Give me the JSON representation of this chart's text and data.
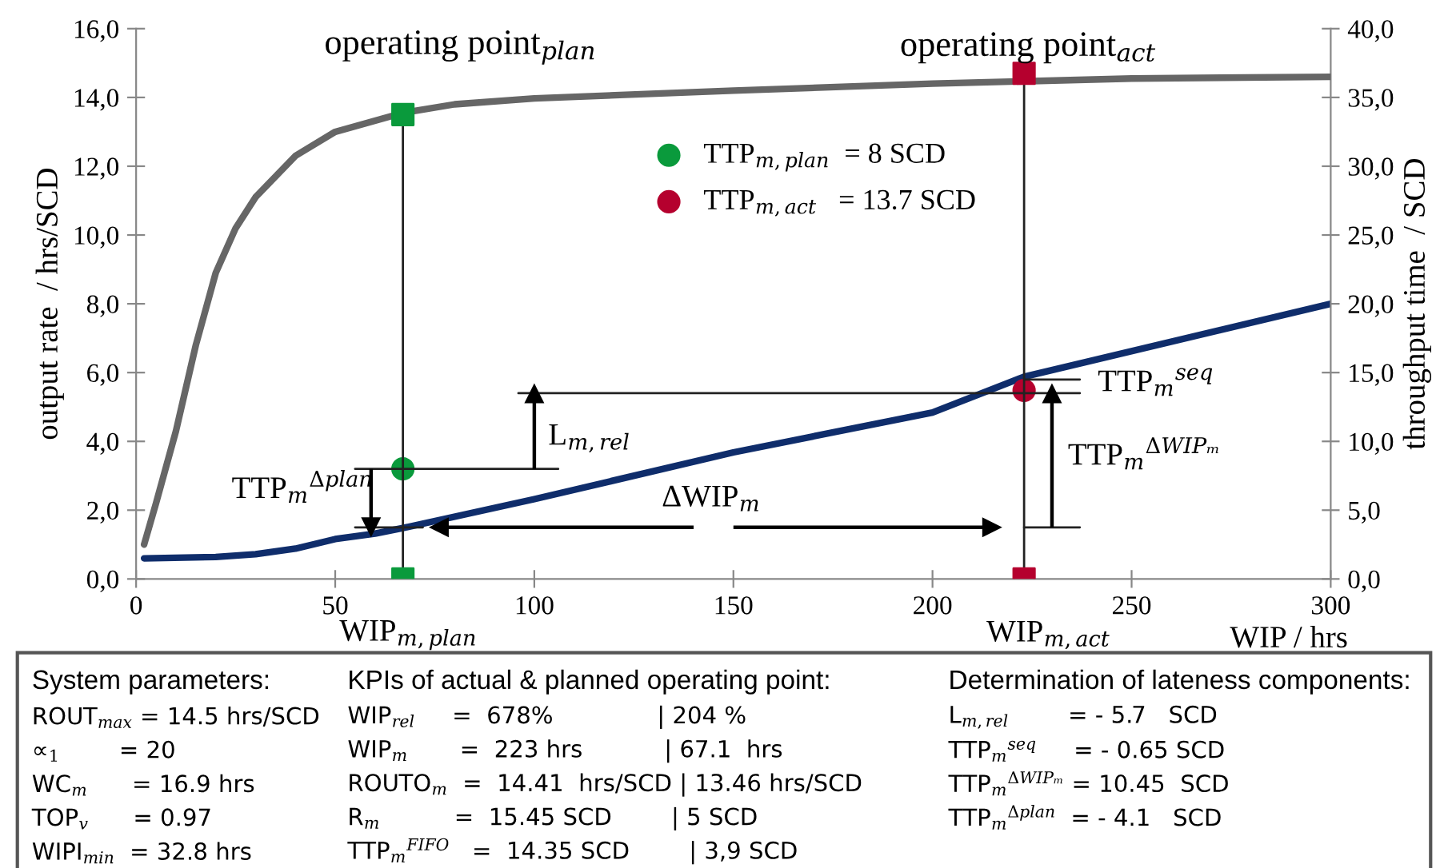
{
  "chart_data": {
    "type": "line",
    "xlabel": "WIP / hrs",
    "ylabel": "output rate  / hrs/SCD",
    "y2label": "throughput time  / SCD",
    "xlim": [
      0,
      300
    ],
    "xticks": [
      0,
      50,
      100,
      150,
      200,
      250,
      300
    ],
    "ylim": [
      0,
      16
    ],
    "yticks": [
      {
        "value": 0,
        "label": "0,0"
      },
      {
        "value": 2,
        "label": "2,0"
      },
      {
        "value": 4,
        "label": "4,0"
      },
      {
        "value": 6,
        "label": "6,0"
      },
      {
        "value": 8,
        "label": "8,0"
      },
      {
        "value": 10,
        "label": "10,0"
      },
      {
        "value": 12,
        "label": "12,0"
      },
      {
        "value": 14,
        "label": "14,0"
      },
      {
        "value": 16,
        "label": "16,0"
      }
    ],
    "y2lim": [
      0,
      40
    ],
    "y2ticks": [
      {
        "value": 0,
        "label": "0,0"
      },
      {
        "value": 5,
        "label": "5,0"
      },
      {
        "value": 10,
        "label": "10,0"
      },
      {
        "value": 15,
        "label": "15,0"
      },
      {
        "value": 20,
        "label": "20,0"
      },
      {
        "value": 25,
        "label": "25,0"
      },
      {
        "value": 30,
        "label": "30,0"
      },
      {
        "value": 35,
        "label": "35,0"
      },
      {
        "value": 40,
        "label": "40,0"
      }
    ],
    "grid": false,
    "legend": "top",
    "series": [
      {
        "color": "#666666",
        "x": [
          2,
          5,
          10,
          15,
          20,
          25,
          30,
          40,
          50,
          67,
          80,
          100,
          150,
          200,
          250,
          300
        ],
        "values": [
          1.0,
          2.2,
          4.3,
          6.8,
          8.9,
          10.2,
          11.1,
          12.3,
          13.0,
          13.55,
          13.8,
          13.97,
          14.2,
          14.4,
          14.55,
          14.6
        ]
      },
      {
        "axis": "y2",
        "color": "#0f2d6b",
        "x": [
          2,
          20,
          30,
          40,
          50,
          60,
          67,
          100,
          150,
          200,
          223,
          300
        ],
        "values": [
          1.5,
          1.6,
          1.8,
          2.2,
          2.9,
          3.3,
          3.7,
          5.8,
          9.2,
          12.1,
          14.7,
          20.0
        ]
      },
      {
        "color": "#222222",
        "x": [
          67,
          67
        ],
        "values": [
          0,
          13.5
        ]
      },
      {
        "color": "#222222",
        "x": [
          223,
          223
        ],
        "values": [
          0,
          14.7
        ]
      },
      {
        "color": "#222222",
        "x": [
          55,
          106
        ],
        "values": [
          3.2,
          3.2
        ]
      },
      {
        "color": "#222222",
        "x": [
          55,
          72
        ],
        "values": [
          1.5,
          1.5
        ]
      },
      {
        "color": "#222222",
        "x": [
          96,
          237
        ],
        "values": [
          5.4,
          5.4
        ]
      },
      {
        "color": "#222222",
        "x": [
          223,
          237
        ],
        "values": [
          5.8,
          5.8
        ]
      },
      {
        "color": "#222222",
        "x": [
          223,
          237
        ],
        "values": [
          1.5,
          1.5
        ]
      },
      {
        "marker": "triangle",
        "color": "#000000",
        "x": [
          59,
          59
        ],
        "values": [
          3.2,
          1.5
        ]
      },
      {
        "marker": "triangle",
        "color": "#000000",
        "x": [
          100,
          100
        ],
        "values": [
          3.2,
          5.4
        ]
      },
      {
        "marker": "triangle",
        "color": "#000000",
        "x": [
          140,
          76
        ],
        "values": [
          1.5,
          1.5
        ]
      },
      {
        "marker": "triangle",
        "color": "#000000",
        "x": [
          150,
          215
        ],
        "values": [
          1.5,
          1.5
        ]
      },
      {
        "marker": "triangle",
        "color": "#000000",
        "x": [
          230,
          230
        ],
        "values": [
          1.5,
          5.4
        ]
      },
      {
        "type": "scatter",
        "marker": "square",
        "color": "#0a9a3c",
        "x": [
          67,
          67
        ],
        "values": [
          13.5,
          0
        ]
      },
      {
        "type": "scatter",
        "marker": "square",
        "color": "#b5002e",
        "x": [
          223,
          223
        ],
        "values": [
          14.7,
          0
        ]
      },
      {
        "type": "scatter",
        "marker": "circle",
        "axis": "y2",
        "name": "TTP$_{m,plan}$  = 8 SCD",
        "color": "#0a9a3c",
        "x": [
          67
        ],
        "values": [
          8
        ]
      },
      {
        "type": "scatter",
        "marker": "circle",
        "axis": "y2",
        "name": "TTP$_{m,act}$   = 13.7 SCD",
        "color": "#b5002e",
        "x": [
          223
        ],
        "values": [
          13.7
        ]
      }
    ],
    "annotations": [
      "TTP$_{m}$$^{Δplan}$",
      "L$_{m,rel}$",
      "ΔWIP$_{m}$",
      "TTP$_{m}$$^{seq}$",
      "TTP$_{m}$$^{ΔWIPₘ}$",
      "operating point$_{plan}$",
      "operating point$_{act}$",
      "WIP$_{m,plan}$",
      "WIP$_{m,act}$",
      "System parameters:",
      "ROUT$_{max}$ = 14.5 hrs/SCD",
      "∝$_{1}$        = 20",
      "WC$_{m}$      = 16.9 hrs",
      "TOP$_{v}$      = 0.97",
      "WIPI$_{min}$  = 32.8 hrs",
      "KPIs of actual & planned operating point:",
      "WIP$_{rel}$     =  678%              | 204 %",
      "WIP$_{m}$       =  223 hrs           | 67.1  hrs",
      "ROUTO$_{m}$  =  14.41  hrs/SCD | 13.46 hrs/SCD",
      "R$_{m}$          =  15.45 SCD        | 5 SCD",
      "TTP$_{m}$$^{FIFO}$   =  14.35 SCD        | 3,9 SCD",
      "Determination of lateness components:",
      "L$_{m,rel}$        = - 5.7   SCD",
      "TTP$_{m}$$^{seq}$     = - 0.65 SCD",
      "TTP$_{m}$$^{ΔWIPₘ}$ = 10.45  SCD",
      "TTP$_{m}$$^{Δplan}$  = - 4.1   SCD"
    ]
  }
}
